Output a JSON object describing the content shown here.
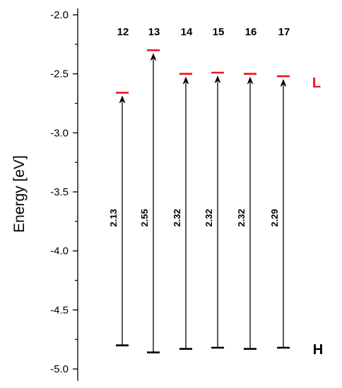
{
  "chart_data": {
    "type": "energy-level",
    "ylabel": "Energy [eV]",
    "ylim": [
      -5.0,
      -2.0
    ],
    "y_ticks": [
      "-2.0",
      "-2.5",
      "-3.0",
      "-3.5",
      "-4.0",
      "-4.5",
      "-5.0"
    ],
    "categories": [
      "12",
      "13",
      "14",
      "15",
      "16",
      "17"
    ],
    "lumo": [
      -2.66,
      -2.3,
      -2.5,
      -2.49,
      -2.5,
      -2.52
    ],
    "homo": [
      -4.8,
      -4.86,
      -4.83,
      -4.82,
      -4.83,
      -4.82
    ],
    "gaps": [
      "2.13",
      "2.55",
      "2.32",
      "2.32",
      "2.32",
      "2.29"
    ],
    "lumo_tag": "L",
    "homo_tag": "H",
    "lumo_color": "#e8161b",
    "homo_color": "#000000",
    "arrow_color": "#000000",
    "grid": false
  }
}
